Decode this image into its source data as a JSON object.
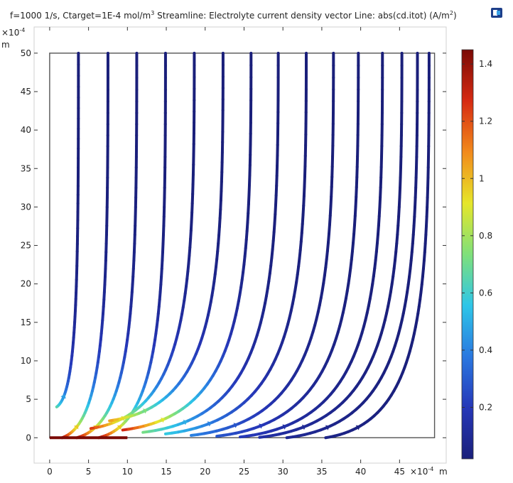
{
  "chart_data": {
    "type": "streamline",
    "title": {
      "main": "f=1000 1/s, Ctarget=1E-4 mol/m",
      "main_sup": "3",
      "streamline_label": "Streamline: Electrolyte current density vector",
      "line_label": "Line: abs(cd.itot) (A/m",
      "line_sup": "2",
      "line_end": ")"
    },
    "x_axis": {
      "unit": "m",
      "multiplier": "×10",
      "multiplier_exp": "-4",
      "range": [
        -2,
        51
      ],
      "ticks": [
        0,
        5,
        10,
        15,
        20,
        25,
        30,
        35,
        40,
        45
      ],
      "tick_labels": [
        "0",
        "5",
        "10",
        "15",
        "20",
        "25",
        "30",
        "35",
        "40",
        "45"
      ]
    },
    "y_axis": {
      "unit": "m",
      "multiplier": "×10",
      "multiplier_exp": "-4",
      "range": [
        -3.3,
        53.4
      ],
      "ticks": [
        0,
        5,
        10,
        15,
        20,
        25,
        30,
        35,
        40,
        45,
        50
      ],
      "tick_labels": [
        "0",
        "5",
        "10",
        "15",
        "20",
        "25",
        "30",
        "35",
        "40",
        "45",
        "50"
      ]
    },
    "domain_box": {
      "x": [
        0,
        49.5
      ],
      "y": [
        0,
        50
      ]
    },
    "electrode": {
      "x": [
        0,
        10
      ],
      "y": 0,
      "value": 1.45
    },
    "colorbar": {
      "min": 0.02,
      "max": 1.45,
      "ticks": [
        0.2,
        0.4,
        0.6,
        0.8,
        1,
        1.2,
        1.4
      ],
      "tick_labels": [
        "0.2",
        "0.4",
        "0.6",
        "0.8",
        "1",
        "1.2",
        "1.4"
      ],
      "colormap": "rainbow",
      "colors": [
        "#1a1f7a",
        "#2637b8",
        "#2a78e0",
        "#2ec6e8",
        "#7fe07a",
        "#e6e62a",
        "#f28a1c",
        "#d62a12",
        "#7a0a05"
      ]
    },
    "streamlines": [
      {
        "top_x": 3.7,
        "foot": [
          0.9,
          4.0
        ],
        "start_value": 0.7
      },
      {
        "top_x": 7.5,
        "foot": [
          1.6,
          0.0
        ],
        "start_value": 1.45
      },
      {
        "top_x": 11.2,
        "foot": [
          3.5,
          0.0
        ],
        "start_value": 1.45
      },
      {
        "top_x": 14.9,
        "foot": [
          6.3,
          0.0
        ],
        "start_value": 1.45
      },
      {
        "top_x": 18.6,
        "foot": [
          5.3,
          1.2
        ],
        "start_value": 1.3
      },
      {
        "top_x": 22.3,
        "foot": [
          7.7,
          2.2
        ],
        "start_value": 1.1
      },
      {
        "top_x": 25.9,
        "foot": [
          9.4,
          1.0
        ],
        "start_value": 1.35
      },
      {
        "top_x": 29.4,
        "foot": [
          12.0,
          0.7
        ],
        "start_value": 0.75
      },
      {
        "top_x": 33.0,
        "foot": [
          14.9,
          0.5
        ],
        "start_value": 0.6
      },
      {
        "top_x": 36.5,
        "foot": [
          18.2,
          0.3
        ],
        "start_value": 0.42
      },
      {
        "top_x": 39.7,
        "foot": [
          21.5,
          0.2
        ],
        "start_value": 0.3
      },
      {
        "top_x": 42.8,
        "foot": [
          24.5,
          0.1
        ],
        "start_value": 0.22
      },
      {
        "top_x": 45.3,
        "foot": [
          27.0,
          0.05
        ],
        "start_value": 0.15
      },
      {
        "top_x": 47.3,
        "foot": [
          30.5,
          0.0
        ],
        "start_value": 0.1
      },
      {
        "top_x": 48.8,
        "foot": [
          35.5,
          0.0
        ],
        "start_value": 0.06
      }
    ]
  },
  "icons": {
    "corner": "comsol-graphics-icon"
  }
}
